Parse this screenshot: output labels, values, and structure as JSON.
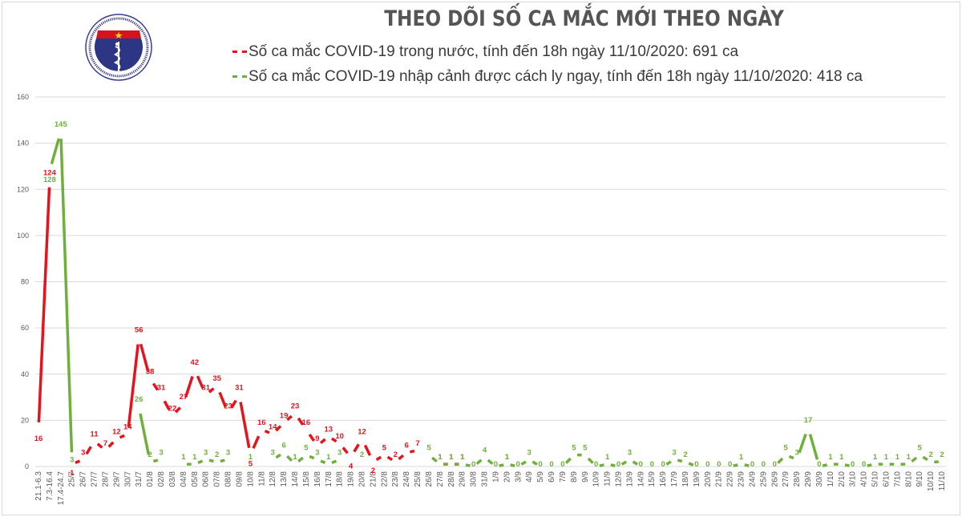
{
  "header": {
    "title": "THEO DÕI SỐ CA MẮC MỚI THEO NGÀY",
    "logo": {
      "top_text": "BỘ Y TẾ",
      "bottom_text": "MINISTRY OF HEALTH"
    }
  },
  "colors": {
    "domestic": "#e8121b",
    "imported": "#6fb03b",
    "grid": "#d9d9d9",
    "axis_text": "#595959"
  },
  "chart_data": {
    "type": "line",
    "title": "THEO DÕI SỐ CA MẮC MỚI THEO NGÀY",
    "xlabel": "",
    "ylabel": "",
    "ylim": [
      0,
      160
    ],
    "yticks": [
      0,
      20,
      40,
      60,
      80,
      100,
      120,
      140,
      160
    ],
    "grid": true,
    "legend_position": "top",
    "categories": [
      "21.1-6.3",
      "7.3-16.4",
      "17.4-24.7",
      "25/7",
      "26/7",
      "27/7",
      "28/7",
      "29/7",
      "30/7",
      "31/7",
      "01/8",
      "02/8",
      "03/8",
      "04/8",
      "05/8",
      "06/8",
      "07/8",
      "08/8",
      "09/8",
      "10/8",
      "11/8",
      "12/8",
      "13/8",
      "14/8",
      "15/8",
      "16/8",
      "17/8",
      "18/8",
      "19/8",
      "20/8",
      "21/8",
      "22/8",
      "23/8",
      "24/8",
      "25/8",
      "26/8",
      "27/8",
      "28/8",
      "29/8",
      "30/8",
      "31/8",
      "1/9",
      "2/9",
      "3/9",
      "4/9",
      "5/9",
      "6/9",
      "7/9",
      "8/9",
      "9/9",
      "10/9",
      "11/9",
      "12/9",
      "13/9",
      "14/9",
      "15/9",
      "16/9",
      "17/9",
      "18/9",
      "19/9",
      "20/9",
      "21/9",
      "22/9",
      "23/9",
      "24/9",
      "25/9",
      "26/9",
      "27/9",
      "28/9",
      "29/9",
      "30/9",
      "1/10",
      "2/10",
      "3/10",
      "4/10",
      "5/10",
      "6/10",
      "7/10",
      "8/10",
      "9/10",
      "10/10",
      "11/10"
    ],
    "series": [
      {
        "name": "Số ca mắc COVID-19 trong nước, tính đến 18h ngày 11/10/2020: 691 ca",
        "color": "#e8121b",
        "values": [
          16,
          124,
          null,
          1,
          3,
          11,
          7,
          12,
          14,
          56,
          38,
          31,
          22,
          27,
          42,
          31,
          35,
          23,
          31,
          5,
          16,
          14,
          19,
          23,
          16,
          9,
          13,
          10,
          4,
          12,
          2,
          5,
          2,
          6,
          7,
          null,
          1,
          1,
          1,
          null,
          null,
          null,
          1,
          null,
          null,
          null,
          null,
          null,
          null,
          null,
          null,
          null,
          null,
          null,
          null,
          null,
          null,
          null,
          null,
          null,
          null,
          null,
          null,
          null,
          null,
          null,
          null,
          null,
          null,
          null,
          null,
          null,
          null,
          null,
          null,
          null,
          null,
          null,
          null,
          null,
          null,
          null
        ]
      },
      {
        "name": "Số ca mắc COVID-19 nhập cảnh được cách ly ngay, tính đến 18h ngày 11/10/2020: 418 ca",
        "color": "#6fb03b",
        "values": [
          null,
          128,
          145,
          3,
          null,
          null,
          null,
          null,
          null,
          26,
          2,
          3,
          null,
          1,
          1,
          3,
          2,
          3,
          null,
          1,
          null,
          3,
          6,
          1,
          5,
          3,
          1,
          3,
          null,
          2,
          null,
          null,
          null,
          null,
          null,
          5,
          1,
          1,
          1,
          0,
          4,
          0,
          1,
          0,
          3,
          0,
          0,
          0,
          5,
          5,
          0,
          1,
          0,
          3,
          0,
          0,
          0,
          3,
          2,
          0,
          0,
          0,
          0,
          1,
          0,
          0,
          0,
          5,
          3,
          17,
          0,
          1,
          1,
          0,
          0,
          1,
          1,
          1,
          1,
          5,
          2,
          2
        ]
      }
    ]
  },
  "legend": {
    "domestic_label": "Số ca mắc COVID-19 trong nước, tính đến 18h ngày 11/10/2020: 691 ca",
    "imported_label": "Số ca mắc COVID-19 nhập cảnh được cách ly ngay, tính đến 18h ngày 11/10/2020: 418 ca"
  }
}
